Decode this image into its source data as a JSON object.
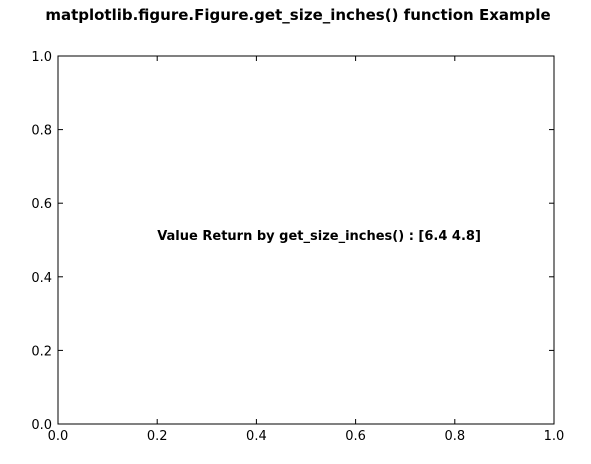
{
  "chart_data": {
    "type": "scatter",
    "title": "matplotlib.figure.Figure.get_size_inches() function Example",
    "xlabel": "",
    "ylabel": "",
    "xlim": [
      0.0,
      1.0
    ],
    "ylim": [
      0.0,
      1.0
    ],
    "xticks": [
      0.0,
      0.2,
      0.4,
      0.6,
      0.8,
      1.0
    ],
    "yticks": [
      0.0,
      0.2,
      0.4,
      0.6,
      0.8,
      1.0
    ],
    "xtick_labels": [
      "0.0",
      "0.2",
      "0.4",
      "0.6",
      "0.8",
      "1.0"
    ],
    "ytick_labels": [
      "0.0",
      "0.2",
      "0.4",
      "0.6",
      "0.8",
      "1.0"
    ],
    "grid": false,
    "series": [],
    "annotations": [
      {
        "text": "Value Return by get_size_inches() : [6.4 4.8]",
        "x": 0.2,
        "y": 0.5
      }
    ]
  },
  "colors": {
    "background": "#ffffff",
    "axes": "#000000",
    "text": "#000000"
  }
}
